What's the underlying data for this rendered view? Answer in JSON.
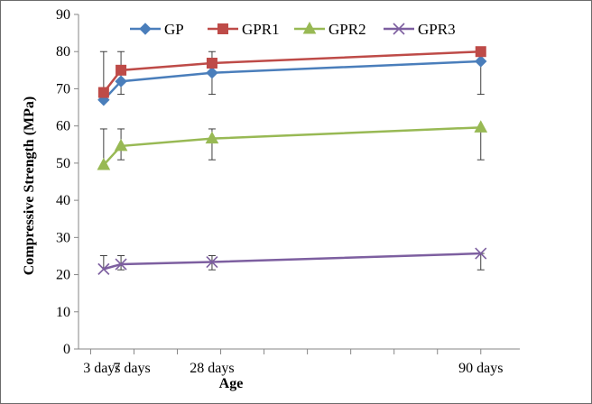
{
  "chart_data": {
    "type": "line",
    "title": "",
    "xlabel": "Age",
    "ylabel": "Compressive Strength (MPa)",
    "categories": [
      "3 days",
      "7 days",
      "28 days",
      "90 days"
    ],
    "x": [
      3,
      7,
      28,
      90
    ],
    "ylim": [
      0,
      90
    ],
    "yticks": [
      0,
      10,
      20,
      30,
      40,
      50,
      60,
      70,
      80,
      90
    ],
    "grid": false,
    "legend_position": "top",
    "series": [
      {
        "name": "GP",
        "color": "#4a7ebb",
        "marker": "diamond",
        "values": [
          67,
          72,
          74.3,
          77.4
        ],
        "err_upper": [
          80,
          80,
          80,
          80
        ],
        "err_lower": [
          null,
          68.5,
          68.5,
          68.5
        ]
      },
      {
        "name": "GPR1",
        "color": "#be4b48",
        "marker": "square",
        "values": [
          69,
          75,
          76.9,
          80
        ],
        "err_upper": [
          null,
          null,
          null,
          null
        ],
        "err_lower": [
          null,
          null,
          null,
          null
        ]
      },
      {
        "name": "GPR2",
        "color": "#98b954",
        "marker": "triangle",
        "values": [
          49.5,
          54.6,
          56.6,
          59.6
        ],
        "err_upper": [
          59.2,
          59.2,
          59.2,
          59.2
        ],
        "err_lower": [
          null,
          50.9,
          50.9,
          50.9
        ]
      },
      {
        "name": "GPR3",
        "color": "#7d5fa0",
        "marker": "x",
        "values": [
          21.5,
          22.8,
          23.4,
          25.7
        ],
        "err_upper": [
          25.1,
          25.1,
          25.1,
          25.7
        ],
        "err_lower": [
          null,
          21.3,
          21.3,
          21.3
        ]
      }
    ]
  }
}
